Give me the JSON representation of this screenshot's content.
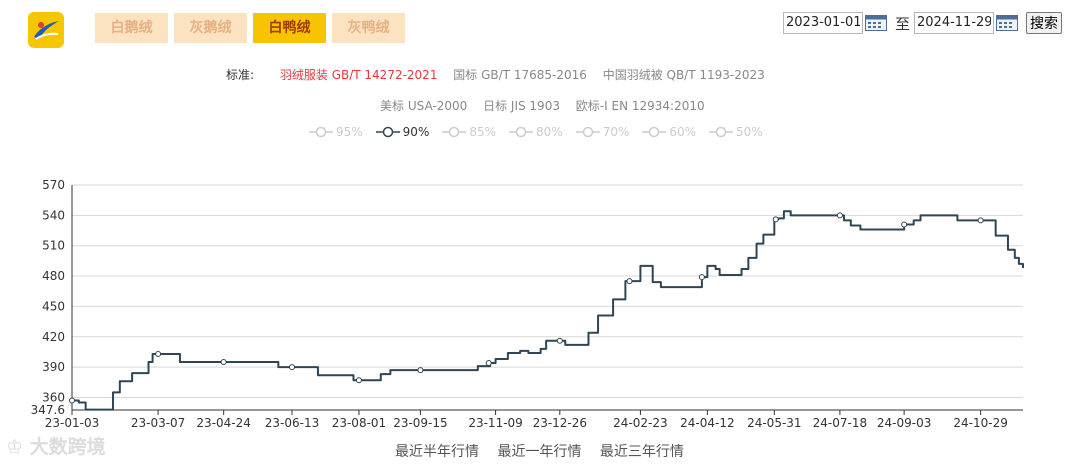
{
  "tabs": [
    {
      "label": "白鹅绒",
      "active": false
    },
    {
      "label": "灰鹅绒",
      "active": false
    },
    {
      "label": "白鸭绒",
      "active": true
    },
    {
      "label": "灰鸭绒",
      "active": false
    }
  ],
  "date_range": {
    "start": "2023-01-01",
    "to_label": "至",
    "end": "2024-11-29",
    "search_label": "搜索"
  },
  "standards": {
    "label": "标准:",
    "row1": [
      "羽绒服装 GB/T 14272-2021",
      "国标 GB/T 17685-2016",
      "中国羽绒被 QB/T 1193-2023"
    ],
    "row2": [
      "美标 USA-2000",
      "日标 JIS 1903",
      "欧标-I EN 12934:2010"
    ],
    "active": "羽绒服装 GB/T 14272-2021"
  },
  "legend": [
    {
      "label": "95%",
      "active": false
    },
    {
      "label": "90%",
      "active": true
    },
    {
      "label": "85%",
      "active": false
    },
    {
      "label": "80%",
      "active": false
    },
    {
      "label": "70%",
      "active": false
    },
    {
      "label": "60%",
      "active": false
    },
    {
      "label": "50%",
      "active": false
    }
  ],
  "bottom_links": [
    "最近半年行情",
    "最近一年行情",
    "最近三年行情"
  ],
  "watermark": "大数跨境",
  "colors": {
    "line": "#2f4554",
    "grid": "#d8d8d8",
    "tab_active_bg": "#f8c400",
    "tab_active_text": "#a33a00",
    "tab_bg": "#fbe3c2",
    "tab_text": "#e7b184",
    "standard_active": "#e4393c"
  },
  "icons": {
    "logo": "brand-logo",
    "calendar": "calendar-icon",
    "legend_marker": "circle-line-marker"
  },
  "chart_data": {
    "type": "line",
    "series": [
      {
        "name": "90%"
      }
    ],
    "y_ticks": [
      347.6,
      360,
      390,
      420,
      450,
      480,
      510,
      540,
      570
    ],
    "ylim": [
      347.6,
      570
    ],
    "x_tick_labels": [
      "23-01-03",
      "23-03-07",
      "23-04-24",
      "23-06-13",
      "23-08-01",
      "23-09-15",
      "23-11-09",
      "23-12-26",
      "24-02-23",
      "24-04-12",
      "24-05-31",
      "24-07-18",
      "24-09-03",
      "24-10-29"
    ],
    "grid": true,
    "step_line": true,
    "points": [
      [
        "2023-01-03",
        357
      ],
      [
        "2023-01-08",
        355
      ],
      [
        "2023-01-13",
        348
      ],
      [
        "2023-01-30",
        348
      ],
      [
        "2023-02-02",
        365
      ],
      [
        "2023-02-07",
        376
      ],
      [
        "2023-02-16",
        384
      ],
      [
        "2023-02-28",
        395
      ],
      [
        "2023-03-03",
        403
      ],
      [
        "2023-03-21",
        403
      ],
      [
        "2023-03-23",
        395
      ],
      [
        "2023-04-24",
        395
      ],
      [
        "2023-06-01",
        395
      ],
      [
        "2023-06-03",
        390
      ],
      [
        "2023-06-13",
        390
      ],
      [
        "2023-06-30",
        390
      ],
      [
        "2023-07-02",
        382
      ],
      [
        "2023-07-25",
        382
      ],
      [
        "2023-07-28",
        377
      ],
      [
        "2023-08-12",
        377
      ],
      [
        "2023-08-17",
        383
      ],
      [
        "2023-08-24",
        387
      ],
      [
        "2023-09-15",
        387
      ],
      [
        "2023-10-25",
        387
      ],
      [
        "2023-10-27",
        391
      ],
      [
        "2023-11-05",
        394
      ],
      [
        "2023-11-09",
        398
      ],
      [
        "2023-11-18",
        404
      ],
      [
        "2023-11-27",
        406
      ],
      [
        "2023-12-03",
        404
      ],
      [
        "2023-12-12",
        408
      ],
      [
        "2023-12-16",
        416
      ],
      [
        "2023-12-26",
        416
      ],
      [
        "2023-12-30",
        412
      ],
      [
        "2024-01-13",
        412
      ],
      [
        "2024-01-16",
        424
      ],
      [
        "2024-01-23",
        441
      ],
      [
        "2024-02-03",
        457
      ],
      [
        "2024-02-12",
        475
      ],
      [
        "2024-02-23",
        490
      ],
      [
        "2024-03-03",
        474
      ],
      [
        "2024-03-09",
        469
      ],
      [
        "2024-04-06",
        469
      ],
      [
        "2024-04-08",
        479
      ],
      [
        "2024-04-12",
        490
      ],
      [
        "2024-04-18",
        487
      ],
      [
        "2024-04-21",
        481
      ],
      [
        "2024-05-03",
        481
      ],
      [
        "2024-05-07",
        487
      ],
      [
        "2024-05-12",
        498
      ],
      [
        "2024-05-18",
        512
      ],
      [
        "2024-05-23",
        521
      ],
      [
        "2024-05-31",
        536
      ],
      [
        "2024-06-03",
        537
      ],
      [
        "2024-06-07",
        544
      ],
      [
        "2024-06-12",
        540
      ],
      [
        "2024-07-18",
        540
      ],
      [
        "2024-07-21",
        535
      ],
      [
        "2024-07-26",
        530
      ],
      [
        "2024-08-02",
        526
      ],
      [
        "2024-08-28",
        526
      ],
      [
        "2024-09-03",
        531
      ],
      [
        "2024-09-10",
        535
      ],
      [
        "2024-09-15",
        540
      ],
      [
        "2024-10-09",
        540
      ],
      [
        "2024-10-12",
        535
      ],
      [
        "2024-11-06",
        535
      ],
      [
        "2024-11-09",
        520
      ],
      [
        "2024-11-18",
        506
      ],
      [
        "2024-11-23",
        498
      ],
      [
        "2024-11-26",
        492
      ],
      [
        "2024-11-29",
        488
      ]
    ],
    "markers": [
      [
        "2023-01-03",
        357
      ],
      [
        "2023-03-07",
        403
      ],
      [
        "2023-04-24",
        395
      ],
      [
        "2023-06-13",
        390
      ],
      [
        "2023-08-01",
        377
      ],
      [
        "2023-09-15",
        387
      ],
      [
        "2023-11-04",
        394
      ],
      [
        "2023-12-26",
        416
      ],
      [
        "2024-02-15",
        475
      ],
      [
        "2024-04-08",
        479
      ],
      [
        "2024-06-01",
        536
      ],
      [
        "2024-07-18",
        540
      ],
      [
        "2024-09-03",
        531
      ],
      [
        "2024-10-29",
        535
      ]
    ]
  }
}
